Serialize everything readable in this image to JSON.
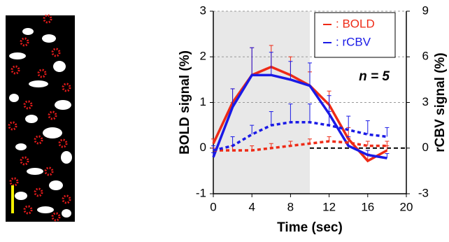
{
  "chart_data": {
    "type": "line",
    "xlabel": "Time (sec)",
    "ylabel": "BOLD signal (%)",
    "y2label": "rCBV signal (%)",
    "annotation": "n = 5",
    "x": [
      0,
      2,
      4,
      6,
      8,
      10,
      12,
      14,
      16,
      18
    ],
    "xlim": [
      0,
      20
    ],
    "xticks": [
      0,
      4,
      8,
      12,
      16,
      20
    ],
    "ylim": [
      -1,
      3
    ],
    "yticks": [
      -1,
      0,
      1,
      2,
      3
    ],
    "y2lim": [
      -3,
      9
    ],
    "y2ticks": [
      -3,
      0,
      3,
      6,
      9
    ],
    "shade_x": [
      0,
      10
    ],
    "grid": true,
    "legend": "top-right",
    "series": [
      {
        "name": ": BOLD",
        "color": "#ee2a16",
        "dash": false,
        "values": [
          0.1,
          1.0,
          1.6,
          1.78,
          1.6,
          1.37,
          0.95,
          0.2,
          -0.28,
          -0.05
        ],
        "errors": [
          0.1,
          0.3,
          0.6,
          0.47,
          0.4,
          0.3,
          0.3,
          0.25,
          0.15,
          0.1
        ]
      },
      {
        "name": ": rCBV",
        "color": "#1a1ae6",
        "dash": false,
        "axis": "y2",
        "values": [
          -0.6,
          2.7,
          4.8,
          4.8,
          4.5,
          4.1,
          2.25,
          0.15,
          -0.45,
          -0.66
        ],
        "errors": [
          0.3,
          1.2,
          1.8,
          1.5,
          1.2,
          1.5,
          1.2,
          0.6,
          0.3,
          0.3
        ]
      },
      {
        "color": "#ee2a16",
        "dash": true,
        "values": [
          -0.05,
          -0.05,
          -0.05,
          0.0,
          0.05,
          0.1,
          0.15,
          0.12,
          0.05,
          0.05
        ],
        "errors": [
          0.05,
          0.1,
          0.1,
          0.1,
          0.1,
          0.1,
          0.1,
          0.1,
          0.1,
          0.1
        ]
      },
      {
        "color": "#1a1ae6",
        "dash": true,
        "axis": "y2",
        "values": [
          -0.15,
          0.15,
          0.9,
          1.5,
          1.7,
          1.7,
          1.5,
          1.2,
          0.9,
          0.75
        ],
        "errors": [
          0.3,
          0.6,
          0.6,
          0.9,
          1.2,
          1.2,
          0.9,
          0.9,
          0.9,
          0.6
        ]
      }
    ]
  }
}
